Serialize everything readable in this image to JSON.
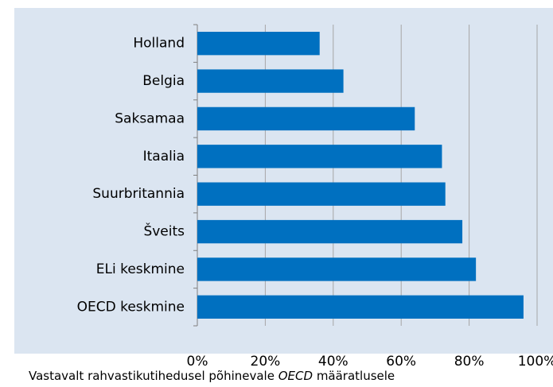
{
  "chart_data": {
    "type": "bar",
    "orientation": "horizontal",
    "categories": [
      "Holland",
      "Belgia",
      "Saksamaa",
      "Itaalia",
      "Suurbritannia",
      "Šveits",
      "ELi keskmine",
      "OECD keskmine"
    ],
    "values": [
      36,
      43,
      64,
      72,
      73,
      78,
      82,
      96
    ],
    "color": "#0070c0",
    "xlim": [
      0,
      100
    ],
    "xticks": [
      {
        "value": 0,
        "label": "0%"
      },
      {
        "value": 20,
        "label": "20%"
      },
      {
        "value": 40,
        "label": "40%"
      },
      {
        "value": 60,
        "label": "60%"
      },
      {
        "value": 80,
        "label": "80%"
      },
      {
        "value": 100,
        "label": "100%"
      }
    ],
    "grid": true,
    "footnote": {
      "before": "Vastavalt rahvastikutihedusel põhinevale ",
      "emphasis": "OECD",
      "after": " määratlusele"
    }
  }
}
